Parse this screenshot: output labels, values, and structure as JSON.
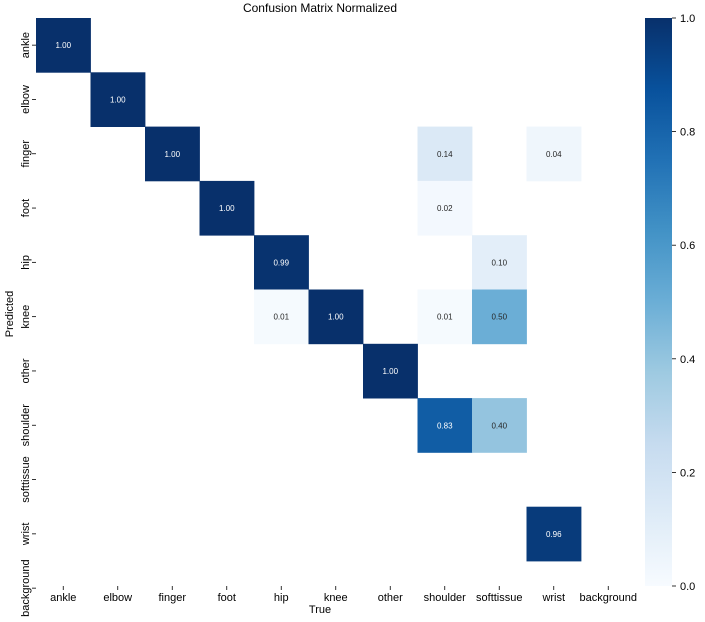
{
  "chart_data": {
    "type": "heatmap",
    "title": "Confusion Matrix Normalized",
    "xlabel": "True",
    "ylabel": "Predicted",
    "x_categories": [
      "ankle",
      "elbow",
      "finger",
      "foot",
      "hip",
      "knee",
      "other",
      "shoulder",
      "softtissue",
      "wrist",
      "background"
    ],
    "y_categories": [
      "ankle",
      "elbow",
      "finger",
      "foot",
      "hip",
      "knee",
      "other",
      "shoulder",
      "softtissue",
      "wrist",
      "background"
    ],
    "values": [
      [
        1.0,
        null,
        null,
        null,
        null,
        null,
        null,
        null,
        null,
        null,
        null
      ],
      [
        null,
        1.0,
        null,
        null,
        null,
        null,
        null,
        null,
        null,
        null,
        null
      ],
      [
        null,
        null,
        1.0,
        null,
        null,
        null,
        null,
        0.14,
        null,
        0.04,
        null
      ],
      [
        null,
        null,
        null,
        1.0,
        null,
        null,
        null,
        0.02,
        null,
        null,
        null
      ],
      [
        null,
        null,
        null,
        null,
        0.99,
        null,
        null,
        null,
        0.1,
        null,
        null
      ],
      [
        null,
        null,
        null,
        null,
        0.01,
        1.0,
        null,
        0.01,
        0.5,
        null,
        null
      ],
      [
        null,
        null,
        null,
        null,
        null,
        null,
        1.0,
        null,
        null,
        null,
        null
      ],
      [
        null,
        null,
        null,
        null,
        null,
        null,
        null,
        0.83,
        0.4,
        null,
        null
      ],
      [
        null,
        null,
        null,
        null,
        null,
        null,
        null,
        null,
        null,
        null,
        null
      ],
      [
        null,
        null,
        null,
        null,
        null,
        null,
        null,
        null,
        null,
        0.96,
        null
      ],
      [
        null,
        null,
        null,
        null,
        null,
        null,
        null,
        null,
        null,
        null,
        null
      ]
    ],
    "value_format": "0.00",
    "colormap": "Blues",
    "colorbar": {
      "range": [
        0.0,
        1.0
      ],
      "ticks": [
        "0.0",
        "0.2",
        "0.4",
        "0.6",
        "0.8",
        "1.0"
      ]
    },
    "grid": false
  }
}
